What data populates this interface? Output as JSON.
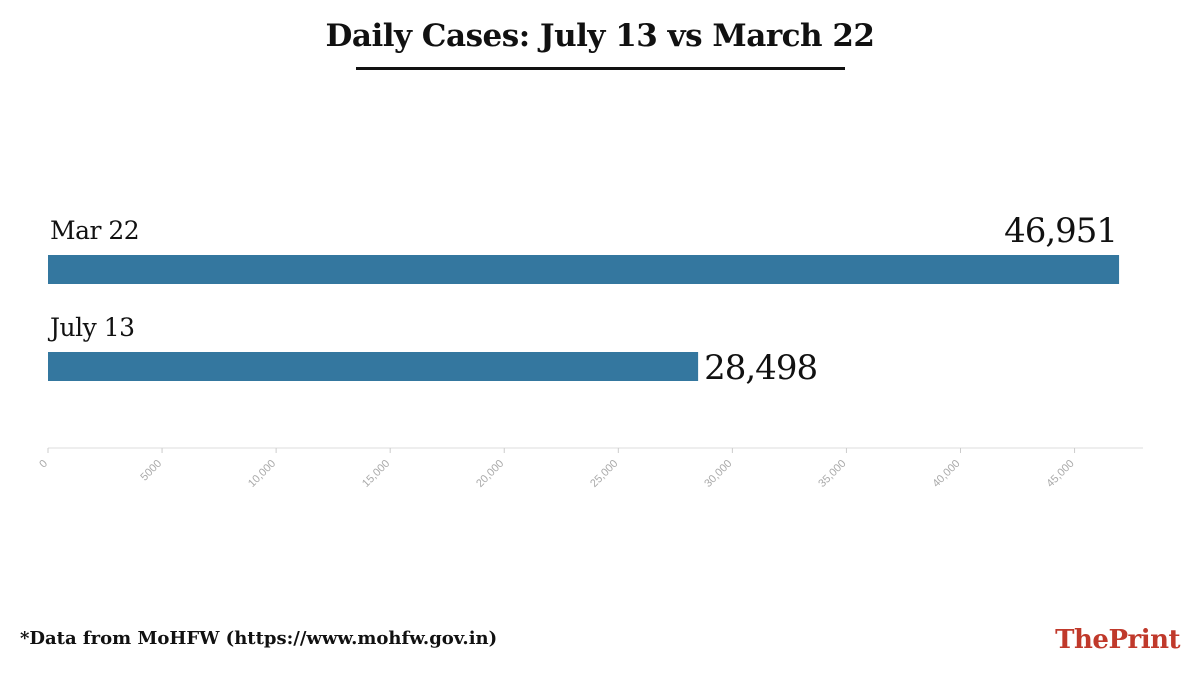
{
  "chart_data": {
    "type": "bar",
    "orientation": "horizontal",
    "title": "Daily Cases: July 13 vs March 22",
    "categories": [
      "Mar 22",
      "July 13"
    ],
    "values": [
      46951,
      28498
    ],
    "value_labels": [
      "46,951",
      "28,498"
    ],
    "xlim": [
      0,
      48000
    ],
    "xticks": [
      0,
      5000,
      10000,
      15000,
      20000,
      25000,
      30000,
      35000,
      40000,
      45000
    ],
    "xtick_labels": [
      "0",
      "5000",
      "10,000",
      "15,000",
      "20,000",
      "25,000",
      "30,000",
      "35,000",
      "40,000",
      "45,000"
    ],
    "bar_color": "#34779f",
    "grid": false,
    "legend": "none"
  },
  "footer": {
    "source": "*Data from MoHFW (https://www.mohfw.gov.in)",
    "brand_the": "The",
    "brand_print": "Print",
    "brand_color": "#c0392b"
  }
}
